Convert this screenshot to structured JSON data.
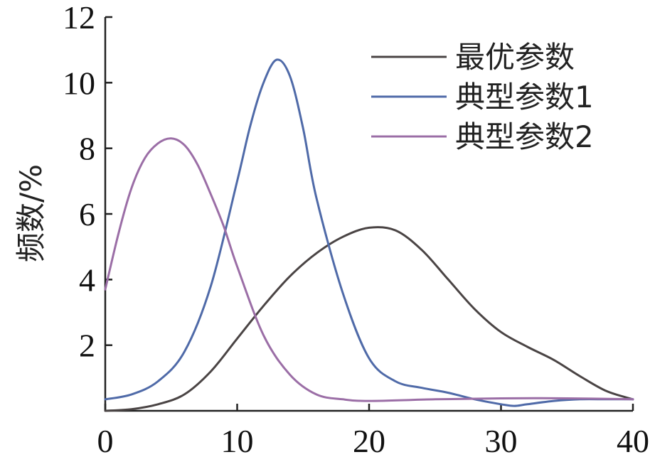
{
  "chart_data": {
    "type": "line",
    "xlabel": "",
    "ylabel": "频数/%",
    "xlim": [
      0,
      40
    ],
    "ylim": [
      0,
      12
    ],
    "x_ticks": [
      "0",
      "10",
      "20",
      "30",
      "40"
    ],
    "y_ticks": [
      "2",
      "4",
      "6",
      "8",
      "10",
      "12"
    ],
    "grid": false,
    "legend_position": "top-right",
    "series": [
      {
        "name": "最优参数",
        "color": "#4a4444",
        "x": [
          0,
          2,
          4,
          6,
          8,
          10,
          12,
          14,
          16,
          18,
          20,
          22,
          24,
          26,
          28,
          30,
          32,
          34,
          36,
          38,
          40
        ],
        "y": [
          0,
          0.05,
          0.2,
          0.5,
          1.2,
          2.2,
          3.2,
          4.1,
          4.8,
          5.3,
          5.58,
          5.5,
          4.9,
          4.0,
          3.1,
          2.4,
          1.95,
          1.55,
          1.05,
          0.6,
          0.35
        ]
      },
      {
        "name": "典型参数1",
        "color": "#4f6aa8",
        "x": [
          0,
          2,
          4,
          6,
          8,
          10,
          11,
          12,
          13,
          14,
          15,
          16,
          18,
          20,
          22,
          24,
          26,
          28,
          30,
          31,
          32,
          34,
          36,
          38,
          40
        ],
        "y": [
          0.35,
          0.5,
          0.9,
          1.8,
          3.8,
          7.0,
          8.7,
          10.0,
          10.7,
          10.2,
          8.6,
          6.5,
          3.6,
          1.6,
          0.9,
          0.7,
          0.55,
          0.35,
          0.2,
          0.15,
          0.2,
          0.3,
          0.35,
          0.35,
          0.35
        ]
      },
      {
        "name": "典型参数2",
        "color": "#9b6ea6",
        "x": [
          0,
          1,
          2,
          3,
          4,
          5,
          6,
          7,
          8,
          9,
          10,
          12,
          14,
          16,
          18,
          20,
          25,
          30,
          35,
          40
        ],
        "y": [
          3.7,
          5.4,
          6.8,
          7.7,
          8.15,
          8.3,
          8.1,
          7.5,
          6.6,
          5.6,
          4.4,
          2.3,
          1.1,
          0.5,
          0.35,
          0.3,
          0.35,
          0.38,
          0.38,
          0.35
        ]
      }
    ]
  }
}
